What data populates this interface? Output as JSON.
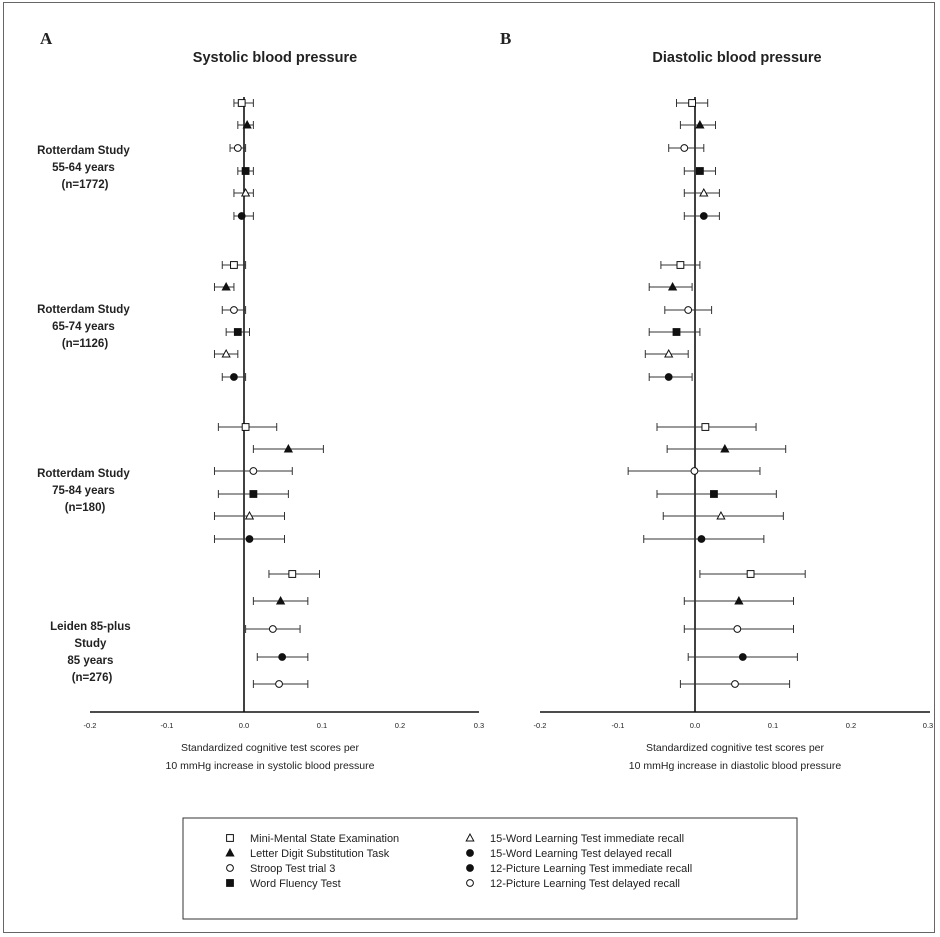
{
  "chart_data": [
    {
      "panel_label": "A",
      "title": "Systolic blood pressure",
      "xlabel_line1": "Standardized cognitive test scores per",
      "xlabel_line2": "10 mmHg increase in systolic blood pressure",
      "xlim": [
        -0.2,
        0.3
      ],
      "xticks": [
        "-0.2",
        "-0.1",
        "0.0",
        "0.1",
        "0.2",
        "0.3"
      ],
      "groups": [
        {
          "label_lines": [
            "Rotterdam Study",
            "55-64 years",
            "(n=1772)"
          ],
          "points": [
            {
              "test": "mmse",
              "est": -0.005,
              "lo": -0.015,
              "hi": 0.01
            },
            {
              "test": "ldst",
              "est": 0.002,
              "lo": -0.01,
              "hi": 0.01
            },
            {
              "test": "stroop",
              "est": -0.01,
              "lo": -0.02,
              "hi": 0.0
            },
            {
              "test": "fluency",
              "est": 0.0,
              "lo": -0.01,
              "hi": 0.01
            },
            {
              "test": "wlt_imm",
              "est": 0.0,
              "lo": -0.015,
              "hi": 0.01
            },
            {
              "test": "wlt_del",
              "est": -0.005,
              "lo": -0.015,
              "hi": 0.01
            }
          ]
        },
        {
          "label_lines": [
            "Rotterdam Study",
            "65-74 years",
            "(n=1126)"
          ],
          "points": [
            {
              "test": "mmse",
              "est": -0.015,
              "lo": -0.03,
              "hi": 0.0
            },
            {
              "test": "ldst",
              "est": -0.025,
              "lo": -0.04,
              "hi": -0.015
            },
            {
              "test": "stroop",
              "est": -0.015,
              "lo": -0.03,
              "hi": 0.0
            },
            {
              "test": "fluency",
              "est": -0.01,
              "lo": -0.025,
              "hi": 0.005
            },
            {
              "test": "wlt_imm",
              "est": -0.025,
              "lo": -0.04,
              "hi": -0.01
            },
            {
              "test": "wlt_del",
              "est": -0.015,
              "lo": -0.03,
              "hi": 0.0
            }
          ]
        },
        {
          "label_lines": [
            "Rotterdam Study",
            "75-84 years",
            "(n=180)"
          ],
          "points": [
            {
              "test": "mmse",
              "est": 0.0,
              "lo": -0.035,
              "hi": 0.04
            },
            {
              "test": "ldst",
              "est": 0.055,
              "lo": 0.01,
              "hi": 0.1
            },
            {
              "test": "stroop",
              "est": 0.01,
              "lo": -0.04,
              "hi": 0.06
            },
            {
              "test": "fluency",
              "est": 0.01,
              "lo": -0.035,
              "hi": 0.055
            },
            {
              "test": "wlt_imm",
              "est": 0.005,
              "lo": -0.04,
              "hi": 0.05
            },
            {
              "test": "wlt_del",
              "est": 0.005,
              "lo": -0.04,
              "hi": 0.05
            }
          ]
        },
        {
          "label_lines": [
            "Leiden 85-plus",
            "Study",
            "85 years",
            "(n=276)"
          ],
          "points": [
            {
              "test": "mmse",
              "est": 0.06,
              "lo": 0.03,
              "hi": 0.095
            },
            {
              "test": "ldst",
              "est": 0.045,
              "lo": 0.01,
              "hi": 0.08
            },
            {
              "test": "stroop",
              "est": 0.035,
              "lo": 0.0,
              "hi": 0.07
            },
            {
              "test": "wlt_del",
              "est": 0.047,
              "lo": 0.015,
              "hi": 0.08
            },
            {
              "test": "pic_del",
              "est": 0.043,
              "lo": 0.01,
              "hi": 0.08
            }
          ]
        }
      ]
    },
    {
      "panel_label": "B",
      "title": "Diastolic blood pressure",
      "xlabel_line1": "Standardized cognitive test scores per",
      "xlabel_line2": "10 mmHg increase in diastolic blood pressure",
      "xlim": [
        -0.2,
        0.3
      ],
      "xticks": [
        "-0.2",
        "-0.1",
        "0.0",
        "0.1",
        "0.2",
        "0.3"
      ],
      "groups": [
        {
          "points": [
            {
              "test": "mmse",
              "est": -0.005,
              "lo": -0.025,
              "hi": 0.015
            },
            {
              "test": "ldst",
              "est": 0.005,
              "lo": -0.02,
              "hi": 0.025
            },
            {
              "test": "stroop",
              "est": -0.015,
              "lo": -0.035,
              "hi": 0.01
            },
            {
              "test": "fluency",
              "est": 0.005,
              "lo": -0.015,
              "hi": 0.025
            },
            {
              "test": "wlt_imm",
              "est": 0.01,
              "lo": -0.015,
              "hi": 0.03
            },
            {
              "test": "wlt_del",
              "est": 0.01,
              "lo": -0.015,
              "hi": 0.03
            }
          ]
        },
        {
          "points": [
            {
              "test": "mmse",
              "est": -0.02,
              "lo": -0.045,
              "hi": 0.005
            },
            {
              "test": "ldst",
              "est": -0.03,
              "lo": -0.06,
              "hi": -0.005
            },
            {
              "test": "stroop",
              "est": -0.01,
              "lo": -0.04,
              "hi": 0.02
            },
            {
              "test": "fluency",
              "est": -0.025,
              "lo": -0.06,
              "hi": 0.005
            },
            {
              "test": "wlt_imm",
              "est": -0.035,
              "lo": -0.065,
              "hi": -0.01
            },
            {
              "test": "wlt_del",
              "est": -0.035,
              "lo": -0.06,
              "hi": -0.005
            }
          ]
        },
        {
          "points": [
            {
              "test": "mmse",
              "est": 0.012,
              "lo": -0.05,
              "hi": 0.077
            },
            {
              "test": "ldst",
              "est": 0.037,
              "lo": -0.037,
              "hi": 0.115
            },
            {
              "test": "stroop",
              "est": -0.002,
              "lo": -0.087,
              "hi": 0.082
            },
            {
              "test": "fluency",
              "est": 0.023,
              "lo": -0.05,
              "hi": 0.103
            },
            {
              "test": "wlt_imm",
              "est": 0.032,
              "lo": -0.042,
              "hi": 0.112
            },
            {
              "test": "wlt_del",
              "est": 0.007,
              "lo": -0.067,
              "hi": 0.087
            }
          ]
        },
        {
          "points": [
            {
              "test": "mmse",
              "est": 0.07,
              "lo": 0.005,
              "hi": 0.14
            },
            {
              "test": "ldst",
              "est": 0.055,
              "lo": -0.015,
              "hi": 0.125
            },
            {
              "test": "stroop",
              "est": 0.053,
              "lo": -0.015,
              "hi": 0.125
            },
            {
              "test": "wlt_del",
              "est": 0.06,
              "lo": -0.01,
              "hi": 0.13
            },
            {
              "test": "pic_del",
              "est": 0.05,
              "lo": -0.02,
              "hi": 0.12
            }
          ]
        }
      ]
    }
  ],
  "legend": {
    "items": [
      {
        "key": "mmse",
        "label": "Mini-Mental State Examination",
        "marker": "open-square"
      },
      {
        "key": "ldst",
        "label": "Letter Digit Substitution Task",
        "marker": "filled-triangle"
      },
      {
        "key": "stroop",
        "label": "Stroop Test trial 3",
        "marker": "open-circle"
      },
      {
        "key": "fluency",
        "label": "Word Fluency Test",
        "marker": "filled-square"
      },
      {
        "key": "wlt_imm",
        "label": "15-Word Learning Test immediate recall",
        "marker": "open-triangle"
      },
      {
        "key": "wlt_del",
        "label": "15-Word Learning Test delayed recall",
        "marker": "filled-circle"
      },
      {
        "key": "pic_imm",
        "label": "12-Picture Learning Test immediate recall",
        "marker": "filled-circle"
      },
      {
        "key": "pic_del",
        "label": "12-Picture Learning Test delayed recall",
        "marker": "open-circle"
      }
    ]
  }
}
